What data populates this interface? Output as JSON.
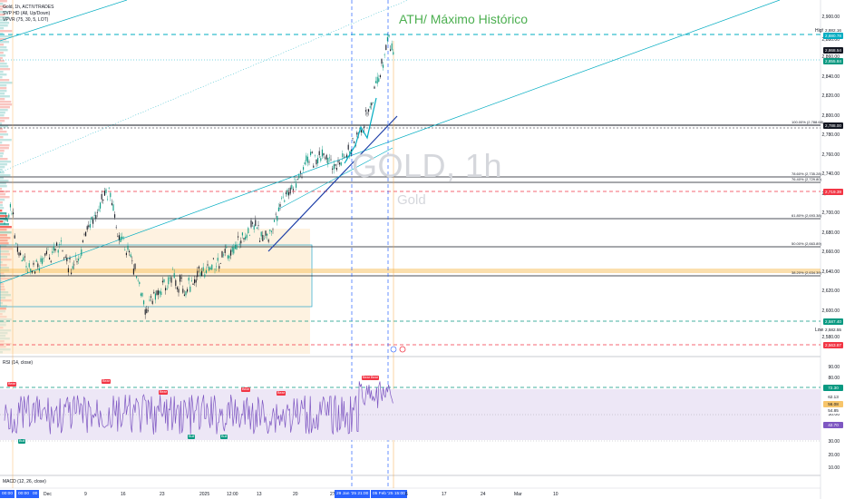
{
  "chart_header": {
    "symbol_line": "Gold, 1h, ACTIVTRADES",
    "svp_line": "SVP HD (All, Up/Down)",
    "vpvr_line": "VPVR (75, 30, 5, LOT)",
    "ath_annotation": "ATH/ Máximo Histórico",
    "watermark_symbol": "GOLD, 1h",
    "watermark_name": "Gold"
  },
  "price_axis": {
    "labels": [
      "2,900.00",
      "2,880.00",
      "2,860.00",
      "2,840.00",
      "2,820.00",
      "2,800.00",
      "2,780.00",
      "2,760.00",
      "2,740.00",
      "2,720.00",
      "2,700.00",
      "2,680.00",
      "2,660.00",
      "2,640.00",
      "2,620.00",
      "2,600.00",
      "2,580.00"
    ],
    "high_label": "High",
    "low_label": "Low",
    "tags": {
      "high_value": "2,882.16",
      "ath_value": "2,880.78",
      "current_price": "2,868.54",
      "green_value": "2,855.84",
      "level_2788": "2,788.00",
      "level_2719": "2,719.39",
      "level_2587": "2,587.40",
      "low_value": "2,582.55",
      "level_2563": "2,563.87"
    }
  },
  "fib_levels": [
    {
      "label": "100.00% (2,788.68)"
    },
    {
      "label": "78.60% (2,735.28)"
    },
    {
      "label": "76.40% (2,729.80)"
    },
    {
      "label": "61.80% (2,693.38)"
    },
    {
      "label": "50.00% (2,663.89)"
    },
    {
      "label": "38.20% (2,634.39)"
    }
  ],
  "rsi_panel": {
    "title": "RSI (14, close)",
    "axis": [
      "90.00",
      "80.00",
      "70.00",
      "60.00",
      "50.00",
      "40.00",
      "30.00",
      "20.00",
      "10.00"
    ],
    "tags": {
      "upper_band": "72.30",
      "v1": "62.13",
      "v2": "56.08",
      "v3": "54.85",
      "rsi_value": "42.70"
    },
    "badges": {
      "bear": "Bear",
      "bull": "Bull"
    }
  },
  "macd_panel": {
    "title": "MACD (12, 26, close)"
  },
  "time_axis": {
    "labels": [
      "Dec",
      "9",
      "16",
      "23",
      "2025",
      "12:00",
      "13",
      "20",
      "27",
      "6",
      "17",
      "24",
      "Mar",
      "10"
    ],
    "left_tags": [
      "00:00",
      "00:00",
      "00"
    ],
    "highlight_tags": [
      "29 Jan '25  21:00",
      "05 Feb '25  15:00"
    ]
  },
  "colors": {
    "bull_candle": "#089981",
    "bear_candle": "#131722",
    "rsi_line": "#7e57c2",
    "rsi_band": "#ede7f6",
    "ath_text": "#4caf50",
    "red_dash": "#f23645",
    "green_dash": "#089981",
    "teal_dash": "#00acc1",
    "blue_trend": "#1e3fa8",
    "orange_zone": "#fbe3c0",
    "accent_blue": "#2962ff"
  }
}
